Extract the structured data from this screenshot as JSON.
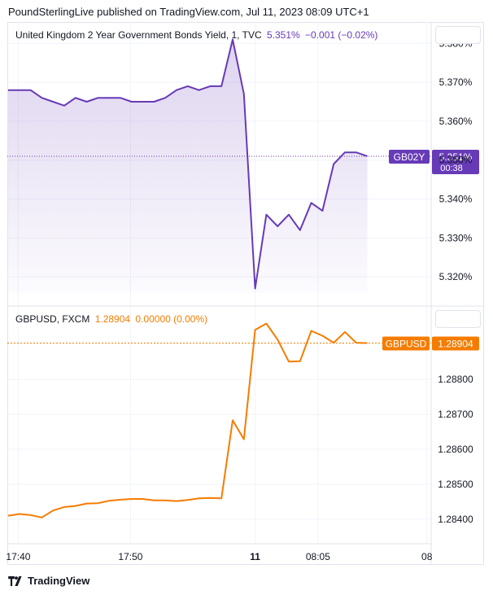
{
  "header": {
    "text": "PoundSterlingLive published on TradingView.com, Jul 11, 2023 08:09 UTC+1"
  },
  "footer": {
    "brand": "TradingView"
  },
  "colors": {
    "bond": "#673ab7",
    "fx": "#f57c00",
    "grid": "#f0f3fa",
    "axis_text": "#131722"
  },
  "chart_data": [
    {
      "type": "area",
      "legend": {
        "name": "United Kingdom 2 Year Government Bonds Yield, 1, TVC",
        "value": "5.351%",
        "change": "−0.001 (−0.02%)"
      },
      "price_label": {
        "symbol": "GB02Y",
        "value": "5.351%",
        "countdown": "00:38"
      },
      "ylim": [
        5.3125,
        5.3855
      ],
      "y_ticks": [
        "5.380%",
        "5.370%",
        "5.360%",
        "5.350%",
        "5.340%",
        "5.330%",
        "5.320%"
      ],
      "y_tick_values": [
        5.38,
        5.37,
        5.36,
        5.35,
        5.34,
        5.33,
        5.32
      ],
      "last_value": 5.351,
      "series": [
        {
          "values": [
            5.368,
            5.368,
            5.368,
            5.366,
            5.365,
            5.364,
            5.366,
            5.365,
            5.366,
            5.366,
            5.366,
            5.365,
            5.365,
            5.365,
            5.366,
            5.368,
            5.369,
            5.368,
            5.369,
            5.369,
            5.381,
            5.367,
            5.317,
            5.336,
            5.333,
            5.336,
            5.332,
            5.339,
            5.337,
            5.349,
            5.352,
            5.352,
            5.351
          ]
        }
      ]
    },
    {
      "type": "line",
      "legend": {
        "name": "GBPUSD, FXCM",
        "value": "1.28904",
        "change": "0.00000 (0.00%)"
      },
      "price_label": {
        "symbol": "GBPUSD",
        "value": "1.28904"
      },
      "ylim": [
        1.2833,
        1.2901
      ],
      "y_ticks": [
        "1.28800",
        "1.28700",
        "1.28600",
        "1.28500",
        "1.28400"
      ],
      "y_tick_values": [
        1.288,
        1.287,
        1.286,
        1.285,
        1.284
      ],
      "last_value": 1.28904,
      "series": [
        {
          "values": [
            1.2841,
            1.28415,
            1.28412,
            1.28405,
            1.28425,
            1.28435,
            1.28438,
            1.28445,
            1.28446,
            1.28453,
            1.28456,
            1.28458,
            1.28458,
            1.28454,
            1.28454,
            1.28452,
            1.28455,
            1.2846,
            1.28461,
            1.2846,
            1.28683,
            1.28629,
            1.28942,
            1.2896,
            1.28914,
            1.28851,
            1.28852,
            1.28939,
            1.28925,
            1.28905,
            1.28936,
            1.28905,
            1.28904
          ]
        }
      ]
    }
  ],
  "x_axis": {
    "ticks": [
      {
        "label": "17:40",
        "index": 0.9,
        "bold": false
      },
      {
        "label": "17:50",
        "index": 10.9,
        "bold": false
      },
      {
        "label": "11",
        "index": 22,
        "bold": true
      },
      {
        "label": "08:05",
        "index": 27.6,
        "bold": false
      },
      {
        "label": "08",
        "index": 37.3,
        "bold": false
      }
    ]
  }
}
